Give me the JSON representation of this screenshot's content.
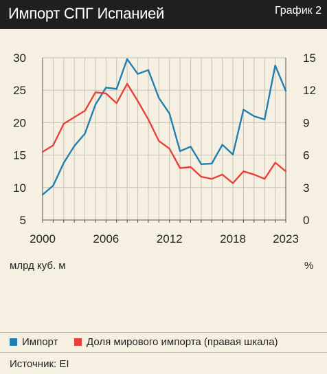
{
  "header": {
    "title": "Импорт СПГ Испанией",
    "figure_label": "График 2"
  },
  "units": {
    "left": "млрд куб. м",
    "right": "%"
  },
  "legend": [
    {
      "label": "Импорт",
      "color": "#1f7fb0"
    },
    {
      "label": "Доля мирового импорта (правая шкала)",
      "color": "#e8413b"
    }
  ],
  "source": "Источник: EI",
  "chart_data": {
    "type": "line",
    "title": "Импорт СПГ Испанией",
    "xlabel": "",
    "ylabel": "млрд куб. м",
    "y2label": "%",
    "xlim": [
      2000,
      2023
    ],
    "xticks": [
      2000,
      2006,
      2012,
      2018,
      2023
    ],
    "ylim": [
      5,
      30
    ],
    "yticks": [
      5,
      10,
      15,
      20,
      25,
      30
    ],
    "y2lim": [
      0,
      15
    ],
    "y2ticks": [
      0,
      3,
      6,
      9,
      12,
      15
    ],
    "grid": true,
    "x": [
      2000,
      2001,
      2002,
      2003,
      2004,
      2005,
      2006,
      2007,
      2008,
      2009,
      2010,
      2011,
      2012,
      2013,
      2014,
      2015,
      2016,
      2017,
      2018,
      2019,
      2020,
      2021,
      2022,
      2023
    ],
    "series": [
      {
        "name": "Импорт",
        "axis": "left",
        "color": "#1f7fb0",
        "values": [
          8.9,
          10.3,
          13.8,
          16.4,
          18.3,
          22.8,
          25.4,
          25.2,
          29.8,
          27.5,
          28.1,
          23.8,
          21.4,
          15.6,
          16.3,
          13.6,
          13.7,
          16.6,
          15.1,
          22.0,
          21.0,
          20.5,
          28.8,
          24.9
        ]
      },
      {
        "name": "Доля мирового импорта (правая шкала)",
        "axis": "right",
        "color": "#e8413b",
        "values": [
          6.3,
          6.9,
          8.9,
          9.5,
          10.1,
          11.8,
          11.7,
          10.8,
          12.6,
          11.0,
          9.3,
          7.3,
          6.6,
          4.8,
          4.9,
          4.0,
          3.8,
          4.2,
          3.4,
          4.5,
          4.2,
          3.8,
          5.3,
          4.5
        ]
      }
    ]
  }
}
